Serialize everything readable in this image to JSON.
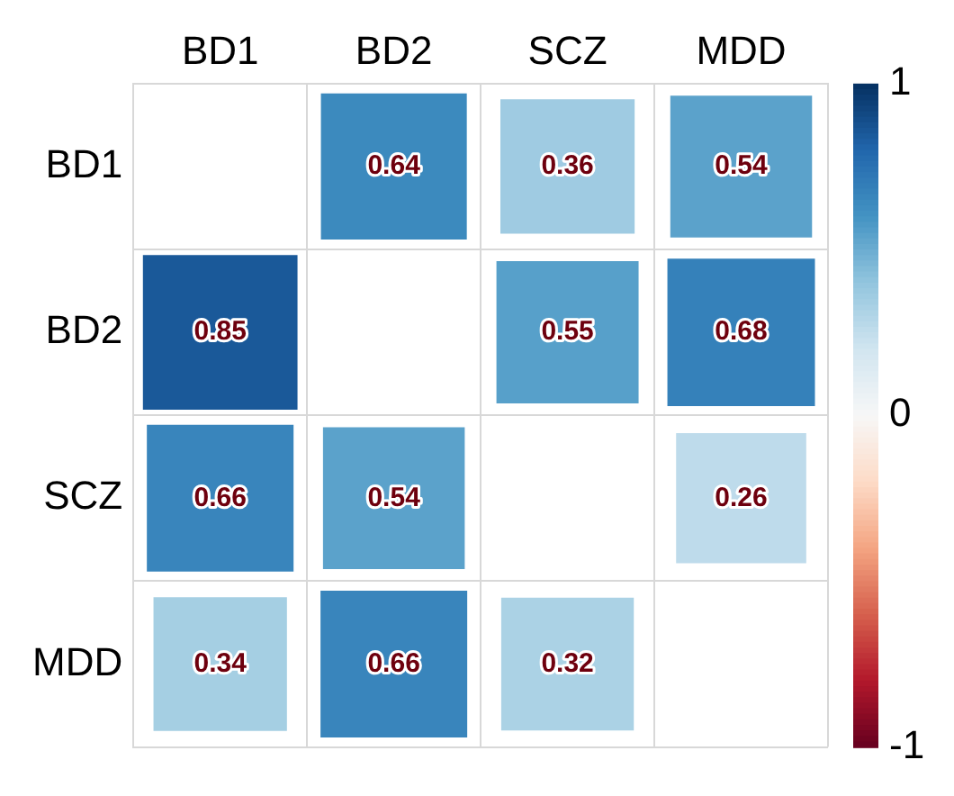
{
  "chart_data": {
    "type": "heatmap",
    "categories": [
      "BD1",
      "BD2",
      "SCZ",
      "MDD"
    ],
    "y_categories": [
      "BD1",
      "BD2",
      "SCZ",
      "MDD"
    ],
    "cells": [
      [
        null,
        0.64,
        0.36,
        0.54
      ],
      [
        0.85,
        null,
        0.55,
        0.68
      ],
      [
        0.66,
        0.54,
        null,
        0.26
      ],
      [
        0.34,
        0.66,
        0.32,
        null
      ]
    ],
    "clim": [
      -1,
      1
    ],
    "cticks": [
      -1,
      0,
      1
    ],
    "data_labels": true,
    "grid": true
  }
}
